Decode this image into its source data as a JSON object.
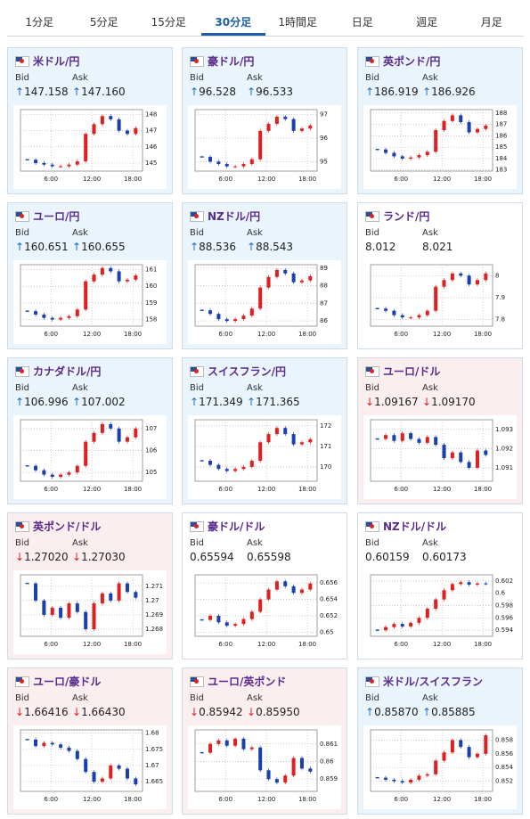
{
  "tabs": [
    "1分足",
    "5分足",
    "15分足",
    "30分足",
    "1時間足",
    "日足",
    "週足",
    "月足"
  ],
  "active_tab": 3,
  "labels": {
    "bid": "Bid",
    "ask": "Ask"
  },
  "time_labels": [
    "6:00",
    "12:00",
    "18:00"
  ],
  "tiles": [
    {
      "name": "米ドル/円",
      "bid": "↑147.158",
      "ask": "↑147.160",
      "trend": "up",
      "chart": {
        "ylim": [
          144.5,
          148.3
        ],
        "yticks": [
          145,
          146,
          147,
          148
        ],
        "closes": [
          145.2,
          145.0,
          144.9,
          144.8,
          144.8,
          144.9,
          145.1,
          146.8,
          147.4,
          147.9,
          147.7,
          147.0,
          146.8,
          147.16
        ]
      }
    },
    {
      "name": "豪ドル/円",
      "bid": "↑96.528",
      "ask": "↑96.533",
      "trend": "up",
      "chart": {
        "ylim": [
          94.6,
          97.2
        ],
        "yticks": [
          95,
          96,
          97
        ],
        "closes": [
          95.2,
          95.0,
          94.9,
          94.8,
          94.8,
          94.9,
          95.1,
          96.3,
          96.6,
          96.9,
          96.8,
          96.3,
          96.4,
          96.53
        ]
      }
    },
    {
      "name": "英ポンド/円",
      "bid": "↑186.919",
      "ask": "↑186.926",
      "trend": "up",
      "chart": {
        "ylim": [
          182.9,
          188.3
        ],
        "yticks": [
          183,
          184,
          185,
          186,
          187,
          188
        ],
        "closes": [
          184.8,
          184.5,
          184.2,
          184.0,
          184.1,
          184.3,
          184.6,
          186.5,
          187.3,
          187.8,
          187.2,
          186.3,
          186.6,
          186.9
        ]
      }
    },
    {
      "name": "ユーロ/円",
      "bid": "↑160.651",
      "ask": "↑160.655",
      "trend": "up",
      "chart": {
        "ylim": [
          157.6,
          161.3
        ],
        "yticks": [
          158,
          159,
          160,
          161
        ],
        "closes": [
          158.5,
          158.3,
          158.1,
          158.0,
          158.1,
          158.2,
          158.6,
          160.3,
          160.7,
          161.1,
          160.9,
          160.3,
          160.4,
          160.65
        ]
      }
    },
    {
      "name": "NZドル/円",
      "bid": "↑88.536",
      "ask": "↑88.543",
      "trend": "up",
      "chart": {
        "ylim": [
          85.7,
          89.2
        ],
        "yticks": [
          86,
          87,
          88,
          89
        ],
        "closes": [
          86.6,
          86.4,
          86.1,
          86.0,
          86.1,
          86.3,
          86.7,
          87.9,
          88.5,
          88.9,
          88.7,
          88.2,
          88.3,
          88.54
        ]
      }
    },
    {
      "name": "ランド/円",
      "bid": "8.012",
      "ask": "8.021",
      "trend": "flat",
      "chart": {
        "ylim": [
          7.77,
          8.05
        ],
        "yticks": [
          7.8,
          7.9,
          8
        ],
        "closes": [
          7.85,
          7.84,
          7.82,
          7.81,
          7.81,
          7.82,
          7.84,
          7.95,
          7.98,
          8.01,
          8.0,
          7.96,
          7.98,
          8.01
        ]
      }
    },
    {
      "name": "カナダドル/円",
      "bid": "↑106.996",
      "ask": "↑107.002",
      "trend": "up",
      "chart": {
        "ylim": [
          104.6,
          107.4
        ],
        "yticks": [
          105,
          106,
          107
        ],
        "closes": [
          105.3,
          105.1,
          104.9,
          104.8,
          104.9,
          105.0,
          105.3,
          106.4,
          106.8,
          107.2,
          107.0,
          106.4,
          106.6,
          107.0
        ]
      }
    },
    {
      "name": "スイスフラン/円",
      "bid": "↑171.349",
      "ask": "↑171.365",
      "trend": "up",
      "chart": {
        "ylim": [
          169.3,
          172.3
        ],
        "yticks": [
          170,
          171,
          172
        ],
        "closes": [
          170.3,
          170.1,
          169.9,
          169.8,
          169.9,
          170.0,
          170.3,
          171.2,
          171.6,
          171.9,
          171.6,
          171.1,
          171.2,
          171.35
        ]
      }
    },
    {
      "name": "ユーロ/ドル",
      "bid": "↓1.09167",
      "ask": "↓1.09170",
      "trend": "down",
      "chart": {
        "ylim": [
          1.0903,
          1.0935
        ],
        "yticks": [
          1.091,
          1.092,
          1.093
        ],
        "closes": [
          1.0925,
          1.0927,
          1.0924,
          1.0928,
          1.0925,
          1.0923,
          1.0926,
          1.0922,
          1.0915,
          1.0918,
          1.0913,
          1.091,
          1.0919,
          1.09167
        ]
      }
    },
    {
      "name": "英ポンド/ドル",
      "bid": "↓1.27020",
      "ask": "↓1.27030",
      "trend": "down",
      "chart": {
        "ylim": [
          1.2675,
          1.2718
        ],
        "yticks": [
          1.268,
          1.269,
          1.27,
          1.271
        ],
        "closes": [
          1.2712,
          1.27,
          1.269,
          1.2695,
          1.2688,
          1.2698,
          1.2692,
          1.268,
          1.2698,
          1.2705,
          1.27,
          1.2712,
          1.2706,
          1.2702
        ]
      }
    },
    {
      "name": "豪ドル/ドル",
      "bid": "0.65594",
      "ask": "0.65598",
      "trend": "flat",
      "chart": {
        "ylim": [
          0.6495,
          0.657
        ],
        "yticks": [
          0.65,
          0.652,
          0.654,
          0.656
        ],
        "closes": [
          0.6515,
          0.652,
          0.6512,
          0.6508,
          0.651,
          0.6516,
          0.6525,
          0.654,
          0.6552,
          0.6562,
          0.6556,
          0.6548,
          0.6552,
          0.65594
        ]
      }
    },
    {
      "name": "NZドル/ドル",
      "bid": "0.60159",
      "ask": "0.60173",
      "trend": "flat",
      "chart": {
        "ylim": [
          0.593,
          0.603
        ],
        "yticks": [
          0.594,
          0.596,
          0.598,
          0.6,
          0.602
        ],
        "closes": [
          0.594,
          0.5945,
          0.595,
          0.5946,
          0.5952,
          0.596,
          0.5975,
          0.599,
          0.6005,
          0.6015,
          0.6018,
          0.6014,
          0.6016,
          0.60159
        ]
      }
    },
    {
      "name": "ユーロ/豪ドル",
      "bid": "↓1.66416",
      "ask": "↓1.66430",
      "trend": "down",
      "chart": {
        "ylim": [
          1.662,
          1.681
        ],
        "yticks": [
          1.665,
          1.67,
          1.675,
          1.68
        ],
        "closes": [
          1.678,
          1.676,
          1.677,
          1.6765,
          1.6755,
          1.6745,
          1.672,
          1.668,
          1.665,
          1.666,
          1.67,
          1.669,
          1.666,
          1.66416
        ]
      }
    },
    {
      "name": "ユーロ/英ポンド",
      "bid": "↓0.85942",
      "ask": "↓0.85950",
      "trend": "down",
      "chart": {
        "ylim": [
          0.8583,
          0.8618
        ],
        "yticks": [
          0.859,
          0.86,
          0.861
        ],
        "closes": [
          0.8605,
          0.861,
          0.8612,
          0.8609,
          0.8613,
          0.8607,
          0.8608,
          0.8595,
          0.859,
          0.8588,
          0.8592,
          0.8602,
          0.8596,
          0.85942
        ]
      }
    },
    {
      "name": "米ドル/スイスフラン",
      "bid": "↑0.85870",
      "ask": "↑0.85885",
      "trend": "up",
      "chart": {
        "ylim": [
          0.8505,
          0.8595
        ],
        "yticks": [
          0.852,
          0.854,
          0.856,
          0.858
        ],
        "closes": [
          0.8525,
          0.8522,
          0.852,
          0.8518,
          0.8522,
          0.8528,
          0.853,
          0.855,
          0.8562,
          0.858,
          0.857,
          0.8555,
          0.856,
          0.8587
        ]
      }
    }
  ]
}
